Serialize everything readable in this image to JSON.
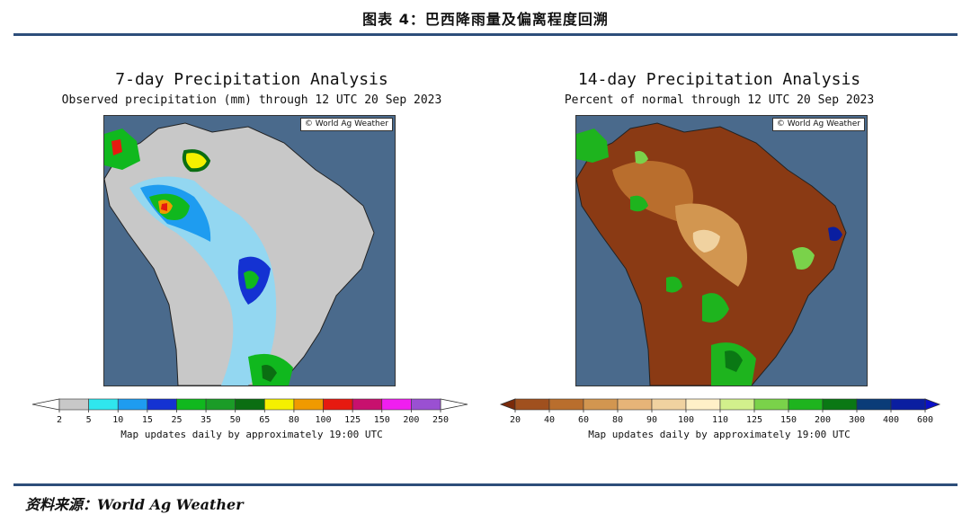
{
  "figure_title": "图表 4：巴西降雨量及偏离程度回溯",
  "source": "资料来源：World Ag Weather",
  "chart_data": [
    {
      "type": "heatmap",
      "title": "7-day Precipitation Analysis",
      "subtitle": "Observed precipitation (mm) through 12 UTC 20 Sep 2023",
      "credit": "© World Ag Weather",
      "legend_placement": "bottom",
      "footer": "Map updates daily by approximately 19:00 UTC",
      "legend": {
        "ticks": [
          "2",
          "5",
          "10",
          "15",
          "25",
          "35",
          "50",
          "65",
          "80",
          "100",
          "125",
          "150",
          "200",
          "250"
        ],
        "colors": [
          "#c8c8c8",
          "#2fe6ee",
          "#1e9cf0",
          "#1432d2",
          "#10b81e",
          "#1b9c27",
          "#0b6e12",
          "#f5f000",
          "#f09a00",
          "#e61a10",
          "#c8106e",
          "#f01ef0",
          "#9a50d2"
        ],
        "arrow_colors": [
          "#ffffff",
          "#ffffff"
        ]
      }
    },
    {
      "type": "heatmap",
      "title": "14-day Precipitation Analysis",
      "subtitle": "Percent of normal through 12 UTC 20 Sep 2023",
      "credit": "© World Ag Weather",
      "legend_placement": "bottom",
      "footer": "Map updates daily by approximately 19:00 UTC",
      "legend": {
        "ticks": [
          "20",
          "40",
          "60",
          "80",
          "90",
          "100",
          "110",
          "125",
          "150",
          "200",
          "300",
          "400",
          "600"
        ],
        "colors": [
          "#a0501e",
          "#b96e2d",
          "#d29650",
          "#e6b478",
          "#f0d2a0",
          "#fff0c8",
          "#d2f08c",
          "#7ad24a",
          "#1eb41e",
          "#0a7814",
          "#0a3c78",
          "#0a1ea0"
        ],
        "arrow_colors": [
          "#7a2a0a",
          "#0a10c8"
        ]
      }
    }
  ]
}
